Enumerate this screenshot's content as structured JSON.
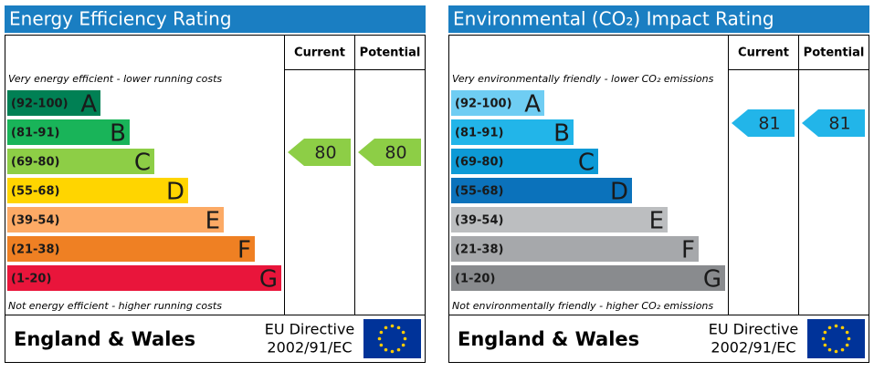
{
  "panels": [
    {
      "title": "Energy Efficiency Rating",
      "col_current": "Current",
      "col_potential": "Potential",
      "top_note": "Very energy efficient - lower running costs",
      "bottom_note": "Not energy efficient - higher running costs",
      "bands": [
        {
          "range": "(92-100)",
          "letter": "A",
          "color": "#008054"
        },
        {
          "range": "(81-91)",
          "letter": "B",
          "color": "#19b459"
        },
        {
          "range": "(69-80)",
          "letter": "C",
          "color": "#8dce46"
        },
        {
          "range": "(55-68)",
          "letter": "D",
          "color": "#ffd500"
        },
        {
          "range": "(39-54)",
          "letter": "E",
          "color": "#fcaa65"
        },
        {
          "range": "(21-38)",
          "letter": "F",
          "color": "#ef8023"
        },
        {
          "range": "(1-20)",
          "letter": "G",
          "color": "#e9153b"
        }
      ],
      "current": 80,
      "potential": 80,
      "footer_region": "England & Wales",
      "footer_directive": "EU Directive",
      "footer_code": "2002/91/EC"
    },
    {
      "title": "Environmental (CO₂) Impact Rating",
      "col_current": "Current",
      "col_potential": "Potential",
      "top_note": "Very environmentally friendly - lower CO₂ emissions",
      "bottom_note": "Not environmentally friendly - higher CO₂ emissions",
      "bands": [
        {
          "range": "(92-100)",
          "letter": "A",
          "color": "#6fcdf3"
        },
        {
          "range": "(81-91)",
          "letter": "B",
          "color": "#22b5e9"
        },
        {
          "range": "(69-80)",
          "letter": "C",
          "color": "#0d9ad6"
        },
        {
          "range": "(55-68)",
          "letter": "D",
          "color": "#0b72bb"
        },
        {
          "range": "(39-54)",
          "letter": "E",
          "color": "#bcbec0"
        },
        {
          "range": "(21-38)",
          "letter": "F",
          "color": "#a6a8ab"
        },
        {
          "range": "(1-20)",
          "letter": "G",
          "color": "#898b8e"
        }
      ],
      "current": 81,
      "potential": 81,
      "footer_region": "England & Wales",
      "footer_directive": "EU Directive",
      "footer_code": "2002/91/EC"
    }
  ]
}
